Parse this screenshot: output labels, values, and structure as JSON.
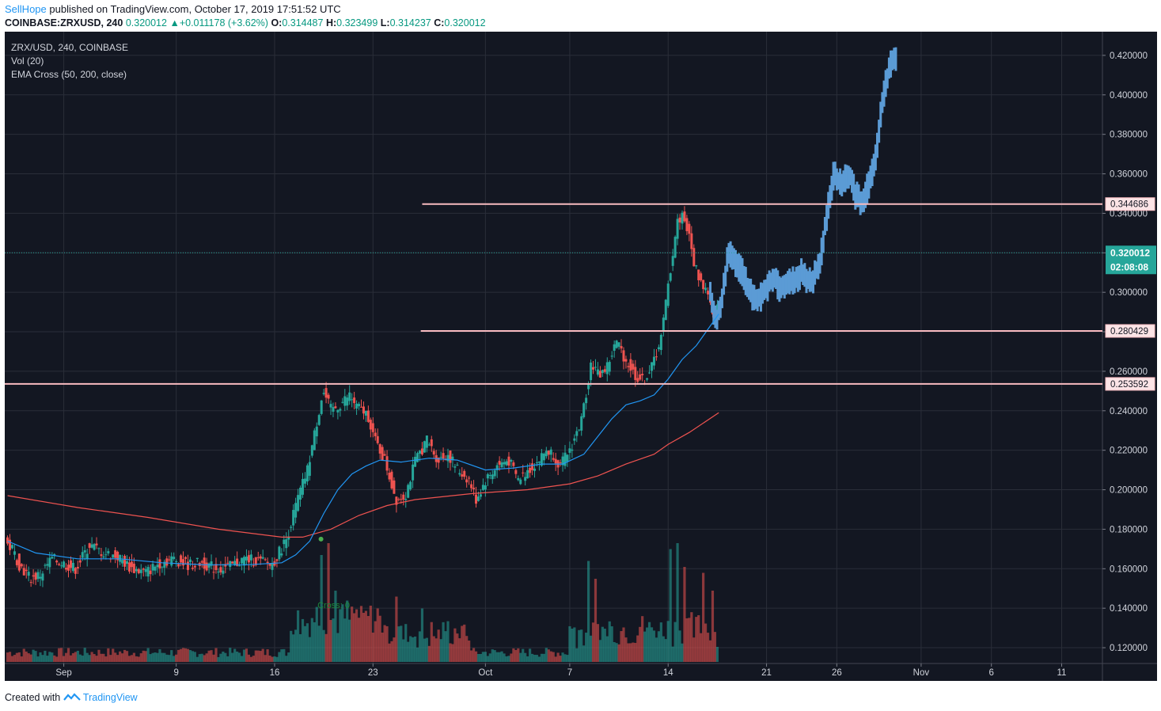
{
  "header": {
    "author": "SellHope",
    "published": " published on TradingView.com, October 17, 2019 17:51:52 UTC"
  },
  "ohlc": {
    "symbol": "COINBASE:ZRXUSD, 240",
    "price": "0.320012",
    "change": "+0.011178 (+3.62%)",
    "o_label": "O:",
    "o": "0.314487",
    "h_label": "H:",
    "h": "0.323499",
    "l_label": "L:",
    "l": "0.314237",
    "c_label": "C:",
    "c": "0.320012"
  },
  "legend": {
    "line1": "ZRX/USD, 240, COINBASE",
    "line2": "Vol (20)",
    "line3": "EMA Cross (50, 200, close)"
  },
  "footer": {
    "created": "Created with",
    "brand": "TradingView"
  },
  "chart_data": {
    "type": "candlestick",
    "title": "ZRX/USD, 240, COINBASE",
    "ylim": [
      0.112,
      0.432
    ],
    "y_ticks": [
      "0.120000",
      "0.140000",
      "0.160000",
      "0.180000",
      "0.200000",
      "0.220000",
      "0.240000",
      "0.260000",
      "0.280000",
      "0.300000",
      "0.320000",
      "0.340000",
      "0.360000",
      "0.380000",
      "0.400000",
      "0.420000"
    ],
    "x_ticks": [
      {
        "label": "Sep",
        "day": 1
      },
      {
        "label": "9",
        "day": 9
      },
      {
        "label": "16",
        "day": 16
      },
      {
        "label": "23",
        "day": 23
      },
      {
        "label": "Oct",
        "day": 31
      },
      {
        "label": "7",
        "day": 37
      },
      {
        "label": "14",
        "day": 44
      },
      {
        "label": "21",
        "day": 51
      },
      {
        "label": "26",
        "day": 56
      },
      {
        "label": "Nov",
        "day": 62
      },
      {
        "label": "6",
        "day": 67
      },
      {
        "label": "11",
        "day": 72
      }
    ],
    "xlim_days": [
      -3.2,
      74.9
    ],
    "price_path": [
      [
        -3.0,
        0.173
      ],
      [
        -2.5,
        0.17
      ],
      [
        -2.0,
        0.162
      ],
      [
        -1.2,
        0.155
      ],
      [
        -0.5,
        0.157
      ],
      [
        0.3,
        0.165
      ],
      [
        1.0,
        0.163
      ],
      [
        2.0,
        0.16
      ],
      [
        3.0,
        0.172
      ],
      [
        4.0,
        0.168
      ],
      [
        5.0,
        0.166
      ],
      [
        6.0,
        0.16
      ],
      [
        7.0,
        0.158
      ],
      [
        8.0,
        0.163
      ],
      [
        9.0,
        0.165
      ],
      [
        10.0,
        0.162
      ],
      [
        11.0,
        0.163
      ],
      [
        12.0,
        0.16
      ],
      [
        13.0,
        0.161
      ],
      [
        14.0,
        0.165
      ],
      [
        15.0,
        0.164
      ],
      [
        16.0,
        0.162
      ],
      [
        17.0,
        0.175
      ],
      [
        17.8,
        0.195
      ],
      [
        18.5,
        0.21
      ],
      [
        19.0,
        0.228
      ],
      [
        19.6,
        0.25
      ],
      [
        20.2,
        0.24
      ],
      [
        20.8,
        0.243
      ],
      [
        21.5,
        0.248
      ],
      [
        22.0,
        0.242
      ],
      [
        22.8,
        0.238
      ],
      [
        23.3,
        0.225
      ],
      [
        24.0,
        0.215
      ],
      [
        24.8,
        0.195
      ],
      [
        25.5,
        0.198
      ],
      [
        26.2,
        0.215
      ],
      [
        27.0,
        0.225
      ],
      [
        27.8,
        0.215
      ],
      [
        28.5,
        0.218
      ],
      [
        29.2,
        0.21
      ],
      [
        30.0,
        0.205
      ],
      [
        30.5,
        0.195
      ],
      [
        31.2,
        0.205
      ],
      [
        32.0,
        0.212
      ],
      [
        32.8,
        0.215
      ],
      [
        33.5,
        0.205
      ],
      [
        34.2,
        0.21
      ],
      [
        35.0,
        0.215
      ],
      [
        35.5,
        0.22
      ],
      [
        36.0,
        0.218
      ],
      [
        36.5,
        0.212
      ],
      [
        37.3,
        0.222
      ],
      [
        38.0,
        0.235
      ],
      [
        38.7,
        0.265
      ],
      [
        39.2,
        0.258
      ],
      [
        39.8,
        0.262
      ],
      [
        40.5,
        0.275
      ],
      [
        41.2,
        0.265
      ],
      [
        41.8,
        0.258
      ],
      [
        42.4,
        0.255
      ],
      [
        43.0,
        0.262
      ],
      [
        43.7,
        0.278
      ],
      [
        44.2,
        0.305
      ],
      [
        44.8,
        0.335
      ],
      [
        45.2,
        0.34
      ],
      [
        45.6,
        0.33
      ],
      [
        46.0,
        0.315
      ],
      [
        46.5,
        0.305
      ],
      [
        47.0,
        0.3
      ],
      [
        47.4,
        0.285
      ],
      [
        47.8,
        0.295
      ],
      [
        48.3,
        0.32
      ],
      [
        48.8,
        0.315
      ],
      [
        49.3,
        0.31
      ],
      [
        49.8,
        0.3
      ],
      [
        50.3,
        0.295
      ],
      [
        50.8,
        0.3
      ],
      [
        51.5,
        0.308
      ],
      [
        52.0,
        0.302
      ],
      [
        52.8,
        0.305
      ],
      [
        53.5,
        0.31
      ],
      [
        54.2,
        0.305
      ],
      [
        54.8,
        0.315
      ],
      [
        55.3,
        0.34
      ],
      [
        55.8,
        0.36
      ],
      [
        56.3,
        0.355
      ],
      [
        56.9,
        0.36
      ],
      [
        57.3,
        0.35
      ],
      [
        57.8,
        0.345
      ],
      [
        58.3,
        0.355
      ],
      [
        58.8,
        0.37
      ],
      [
        59.3,
        0.4
      ],
      [
        59.8,
        0.415
      ],
      [
        60.2,
        0.42
      ]
    ],
    "path_end_day": 60.2,
    "real_data_end_day": 47.6,
    "ema50": [
      [
        -3.0,
        0.174
      ],
      [
        -1.0,
        0.168
      ],
      [
        2.0,
        0.165
      ],
      [
        5.0,
        0.165
      ],
      [
        8.0,
        0.163
      ],
      [
        11.0,
        0.162
      ],
      [
        14.0,
        0.162
      ],
      [
        16.5,
        0.163
      ],
      [
        17.5,
        0.167
      ],
      [
        18.5,
        0.174
      ],
      [
        19.5,
        0.188
      ],
      [
        20.5,
        0.2
      ],
      [
        21.5,
        0.208
      ],
      [
        22.5,
        0.212
      ],
      [
        23.5,
        0.215
      ],
      [
        25.0,
        0.214
      ],
      [
        27.0,
        0.216
      ],
      [
        29.0,
        0.215
      ],
      [
        31.0,
        0.21
      ],
      [
        33.0,
        0.211
      ],
      [
        35.0,
        0.213
      ],
      [
        36.5,
        0.213
      ],
      [
        38.0,
        0.218
      ],
      [
        39.0,
        0.227
      ],
      [
        40.0,
        0.236
      ],
      [
        41.0,
        0.243
      ],
      [
        42.0,
        0.245
      ],
      [
        43.0,
        0.248
      ],
      [
        44.0,
        0.256
      ],
      [
        45.0,
        0.266
      ],
      [
        46.0,
        0.273
      ],
      [
        47.6,
        0.289
      ]
    ],
    "ema200": [
      [
        -3.0,
        0.197
      ],
      [
        2.0,
        0.191
      ],
      [
        7.0,
        0.186
      ],
      [
        12.0,
        0.18
      ],
      [
        16.5,
        0.176
      ],
      [
        18.0,
        0.176
      ],
      [
        20.0,
        0.18
      ],
      [
        22.0,
        0.187
      ],
      [
        24.0,
        0.192
      ],
      [
        26.0,
        0.195
      ],
      [
        30.0,
        0.198
      ],
      [
        34.0,
        0.2
      ],
      [
        37.0,
        0.203
      ],
      [
        39.0,
        0.207
      ],
      [
        41.0,
        0.213
      ],
      [
        43.0,
        0.218
      ],
      [
        44.0,
        0.223
      ],
      [
        45.5,
        0.229
      ],
      [
        47.6,
        0.239
      ]
    ],
    "horizontal_levels": [
      {
        "value": 0.344686,
        "label": "0.344686",
        "start_day": 26.5
      },
      {
        "value": 0.280429,
        "label": "0.280429",
        "start_day": 26.4
      },
      {
        "value": 0.253592,
        "label": "0.253592",
        "start_day": -3.2
      }
    ],
    "current_price": {
      "value": 0.320012,
      "label": "0.320012",
      "countdown": "02:08:08"
    },
    "annotation": {
      "text": "Cross: 0",
      "day": 20.2,
      "value": 0.14
    },
    "cross_marker": {
      "day": 19.3,
      "value": 0.175
    },
    "colors": {
      "up": "#26a69a",
      "down": "#ef5350",
      "ema50": "#2196f3",
      "ema200": "#ef5350",
      "projection": "#5b9bd5",
      "level": "#f8bbc0"
    }
  }
}
